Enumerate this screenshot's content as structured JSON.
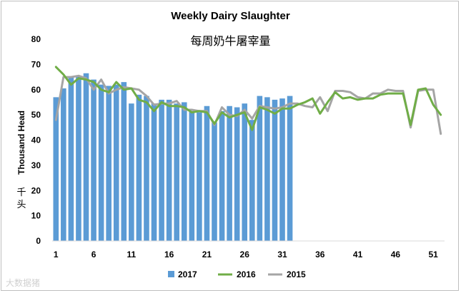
{
  "chart_data": {
    "type": "bar",
    "title": "Weekly Dairy Slaughter",
    "subtitle": "每周奶牛屠宰量",
    "ylabel": "Thousand Head",
    "ylabel_cn": "千头",
    "ylim": [
      0,
      80
    ],
    "y_ticks": [
      0,
      10,
      20,
      30,
      40,
      50,
      60,
      70,
      80
    ],
    "x_ticks": [
      1,
      6,
      11,
      16,
      21,
      26,
      31,
      36,
      41,
      46,
      51
    ],
    "x_range": [
      1,
      52
    ],
    "grid": false,
    "legend_position": "bottom",
    "series": [
      {
        "name": "2017",
        "type": "bar",
        "color": "#5b9bd5",
        "values": [
          57,
          60.5,
          65,
          65.5,
          66.5,
          64,
          62,
          61.5,
          62,
          63,
          54.5,
          58,
          57.5,
          54.5,
          56,
          56,
          54.5,
          55,
          51.5,
          51,
          53.5,
          47,
          51.5,
          53.5,
          53,
          54.5,
          48,
          57.5,
          57,
          56,
          56.5,
          57.5
        ]
      },
      {
        "name": "2016",
        "type": "line",
        "color": "#70ad47",
        "values": [
          69,
          66,
          62,
          64.5,
          64,
          63,
          60,
          59,
          63,
          60,
          60.5,
          56,
          55,
          51.5,
          55,
          53.5,
          53.5,
          53,
          51,
          51.5,
          51,
          46.5,
          51,
          49,
          50,
          51,
          44,
          53,
          52,
          50.5,
          52.5,
          52.5,
          54,
          55,
          56.5,
          50.5,
          55,
          59,
          56.5,
          57,
          56,
          56.5,
          56.5,
          58,
          58.5,
          58.5,
          58.5,
          46,
          60,
          60.5,
          54,
          50
        ]
      },
      {
        "name": "2015",
        "type": "line",
        "color": "#a5a5a5",
        "values": [
          48,
          65,
          65,
          65.5,
          64.5,
          60,
          64,
          58.5,
          60,
          61,
          60.5,
          60,
          57.5,
          54,
          54.5,
          54.5,
          55.5,
          52,
          52,
          51.5,
          51.5,
          46,
          53,
          50,
          49.5,
          52,
          48.5,
          53.5,
          53,
          52.5,
          53,
          54.5,
          54.5,
          53.5,
          53,
          57,
          51.5,
          59.5,
          59.5,
          59,
          57,
          56.5,
          58.5,
          58.5,
          60,
          59.5,
          59.5,
          45,
          59.5,
          60,
          60,
          42.5
        ]
      }
    ]
  },
  "watermark": "大数据猪"
}
